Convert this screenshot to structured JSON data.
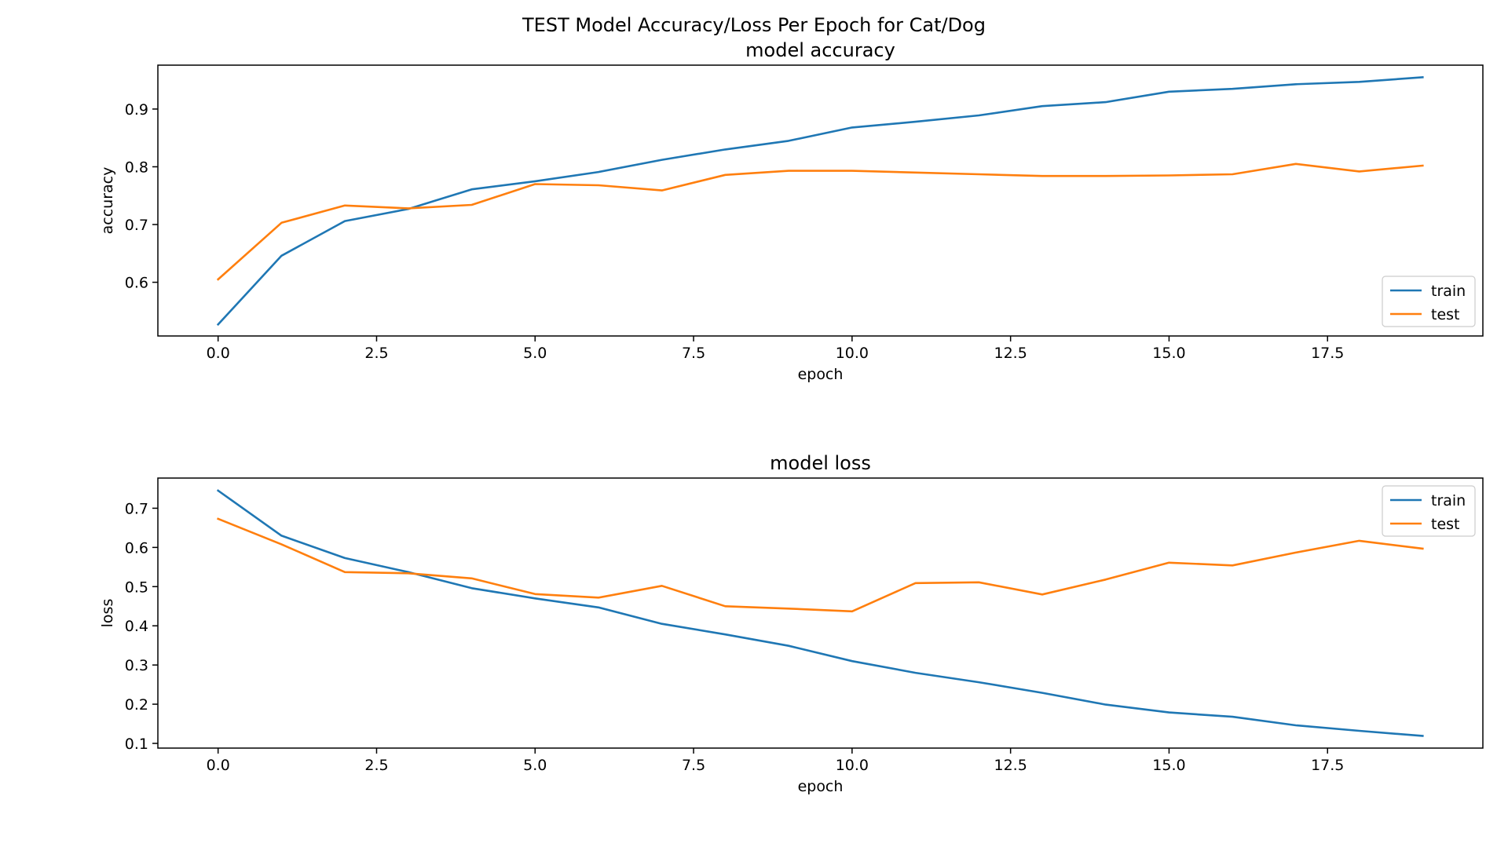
{
  "figure_title": "TEST Model Accuracy/Loss Per Epoch for Cat/Dog",
  "colors": {
    "train": "#1f77b4",
    "test": "#ff7f0e"
  },
  "chart_data": [
    {
      "type": "line",
      "title": "model accuracy",
      "xlabel": "epoch",
      "ylabel": "accuracy",
      "xlim": [
        -0.95,
        19.95
      ],
      "ylim": [
        0.507,
        0.976
      ],
      "xticks": [
        0.0,
        2.5,
        5.0,
        7.5,
        10.0,
        12.5,
        15.0,
        17.5
      ],
      "xtick_labels": [
        "0.0",
        "2.5",
        "5.0",
        "7.5",
        "10.0",
        "12.5",
        "15.0",
        "17.5"
      ],
      "yticks": [
        0.6,
        0.7,
        0.8,
        0.9
      ],
      "ytick_labels": [
        "0.6",
        "0.7",
        "0.8",
        "0.9"
      ],
      "legend": "lower-right",
      "x": [
        0,
        1,
        2,
        3,
        4,
        5,
        6,
        7,
        8,
        9,
        10,
        11,
        12,
        13,
        14,
        15,
        16,
        17,
        18,
        19
      ],
      "series": [
        {
          "name": "train",
          "color": "#1f77b4",
          "values": [
            0.527,
            0.646,
            0.706,
            0.727,
            0.761,
            0.775,
            0.791,
            0.812,
            0.83,
            0.845,
            0.868,
            0.878,
            0.889,
            0.905,
            0.912,
            0.93,
            0.935,
            0.943,
            0.947,
            0.955
          ]
        },
        {
          "name": "test",
          "color": "#ff7f0e",
          "values": [
            0.605,
            0.703,
            0.733,
            0.728,
            0.734,
            0.77,
            0.768,
            0.759,
            0.786,
            0.793,
            0.793,
            0.79,
            0.787,
            0.784,
            0.784,
            0.785,
            0.787,
            0.805,
            0.792,
            0.802
          ]
        }
      ]
    },
    {
      "type": "line",
      "title": "model loss",
      "xlabel": "epoch",
      "ylabel": "loss",
      "xlim": [
        -0.95,
        19.95
      ],
      "ylim": [
        0.088,
        0.777
      ],
      "xticks": [
        0.0,
        2.5,
        5.0,
        7.5,
        10.0,
        12.5,
        15.0,
        17.5
      ],
      "xtick_labels": [
        "0.0",
        "2.5",
        "5.0",
        "7.5",
        "10.0",
        "12.5",
        "15.0",
        "17.5"
      ],
      "yticks": [
        0.1,
        0.2,
        0.3,
        0.4,
        0.5,
        0.6,
        0.7
      ],
      "ytick_labels": [
        "0.1",
        "0.2",
        "0.3",
        "0.4",
        "0.5",
        "0.6",
        "0.7"
      ],
      "legend": "top-right",
      "x": [
        0,
        1,
        2,
        3,
        4,
        5,
        6,
        7,
        8,
        9,
        10,
        11,
        12,
        13,
        14,
        15,
        16,
        17,
        18,
        19
      ],
      "series": [
        {
          "name": "train",
          "color": "#1f77b4",
          "values": [
            0.745,
            0.63,
            0.573,
            0.537,
            0.496,
            0.47,
            0.447,
            0.405,
            0.378,
            0.349,
            0.31,
            0.28,
            0.256,
            0.229,
            0.199,
            0.179,
            0.168,
            0.146,
            0.132,
            0.119
          ]
        },
        {
          "name": "test",
          "color": "#ff7f0e",
          "values": [
            0.673,
            0.608,
            0.537,
            0.534,
            0.521,
            0.481,
            0.472,
            0.502,
            0.45,
            0.444,
            0.437,
            0.509,
            0.511,
            0.48,
            0.518,
            0.561,
            0.554,
            0.587,
            0.617,
            0.597
          ]
        }
      ]
    }
  ]
}
